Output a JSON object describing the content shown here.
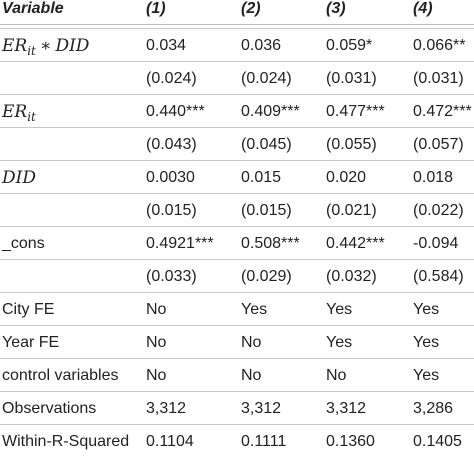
{
  "header": [
    "Variable",
    "(1)",
    "(2)",
    "(3)",
    "(4)"
  ],
  "rows": [
    {
      "label_parts": {
        "a": "ER",
        "a_sub": "it",
        "op": "∗",
        "b": "DID"
      },
      "coef": [
        "0.034",
        "0.036",
        "0.059*",
        "0.066**"
      ],
      "se": [
        "(0.024)",
        "(0.024)",
        "(0.031)",
        "(0.031)"
      ]
    },
    {
      "label_parts": {
        "a": "ER",
        "a_sub": "it"
      },
      "coef": [
        "0.440***",
        "0.409***",
        "0.477***",
        "0.472***"
      ],
      "se": [
        "(0.043)",
        "(0.045)",
        "(0.055)",
        "(0.057)"
      ]
    },
    {
      "label_parts": {
        "a": "DID"
      },
      "coef": [
        "0.0030",
        "0.015",
        "0.020",
        "0.018"
      ],
      "se": [
        "(0.015)",
        "(0.015)",
        "(0.021)",
        "(0.022)"
      ]
    },
    {
      "label": "_cons",
      "coef": [
        "0.4921***",
        "0.508***",
        "0.442***",
        "-0.094"
      ],
      "se": [
        "(0.033)",
        "(0.029)",
        "(0.032)",
        "(0.584)"
      ]
    }
  ],
  "footer_rows": [
    {
      "label": "City FE",
      "values": [
        "No",
        "Yes",
        "Yes",
        "Yes"
      ]
    },
    {
      "label": "Year FE",
      "values": [
        "No",
        "No",
        "Yes",
        "Yes"
      ]
    },
    {
      "label": "control variables",
      "values": [
        "No",
        "No",
        "No",
        "Yes"
      ]
    },
    {
      "label": "Observations",
      "values": [
        "3,312",
        "3,312",
        "3,312",
        "3,286"
      ]
    },
    {
      "label": "Within-R-Squared",
      "values": [
        "0.1104",
        "0.1111",
        "0.1360",
        "0.1405"
      ]
    }
  ]
}
